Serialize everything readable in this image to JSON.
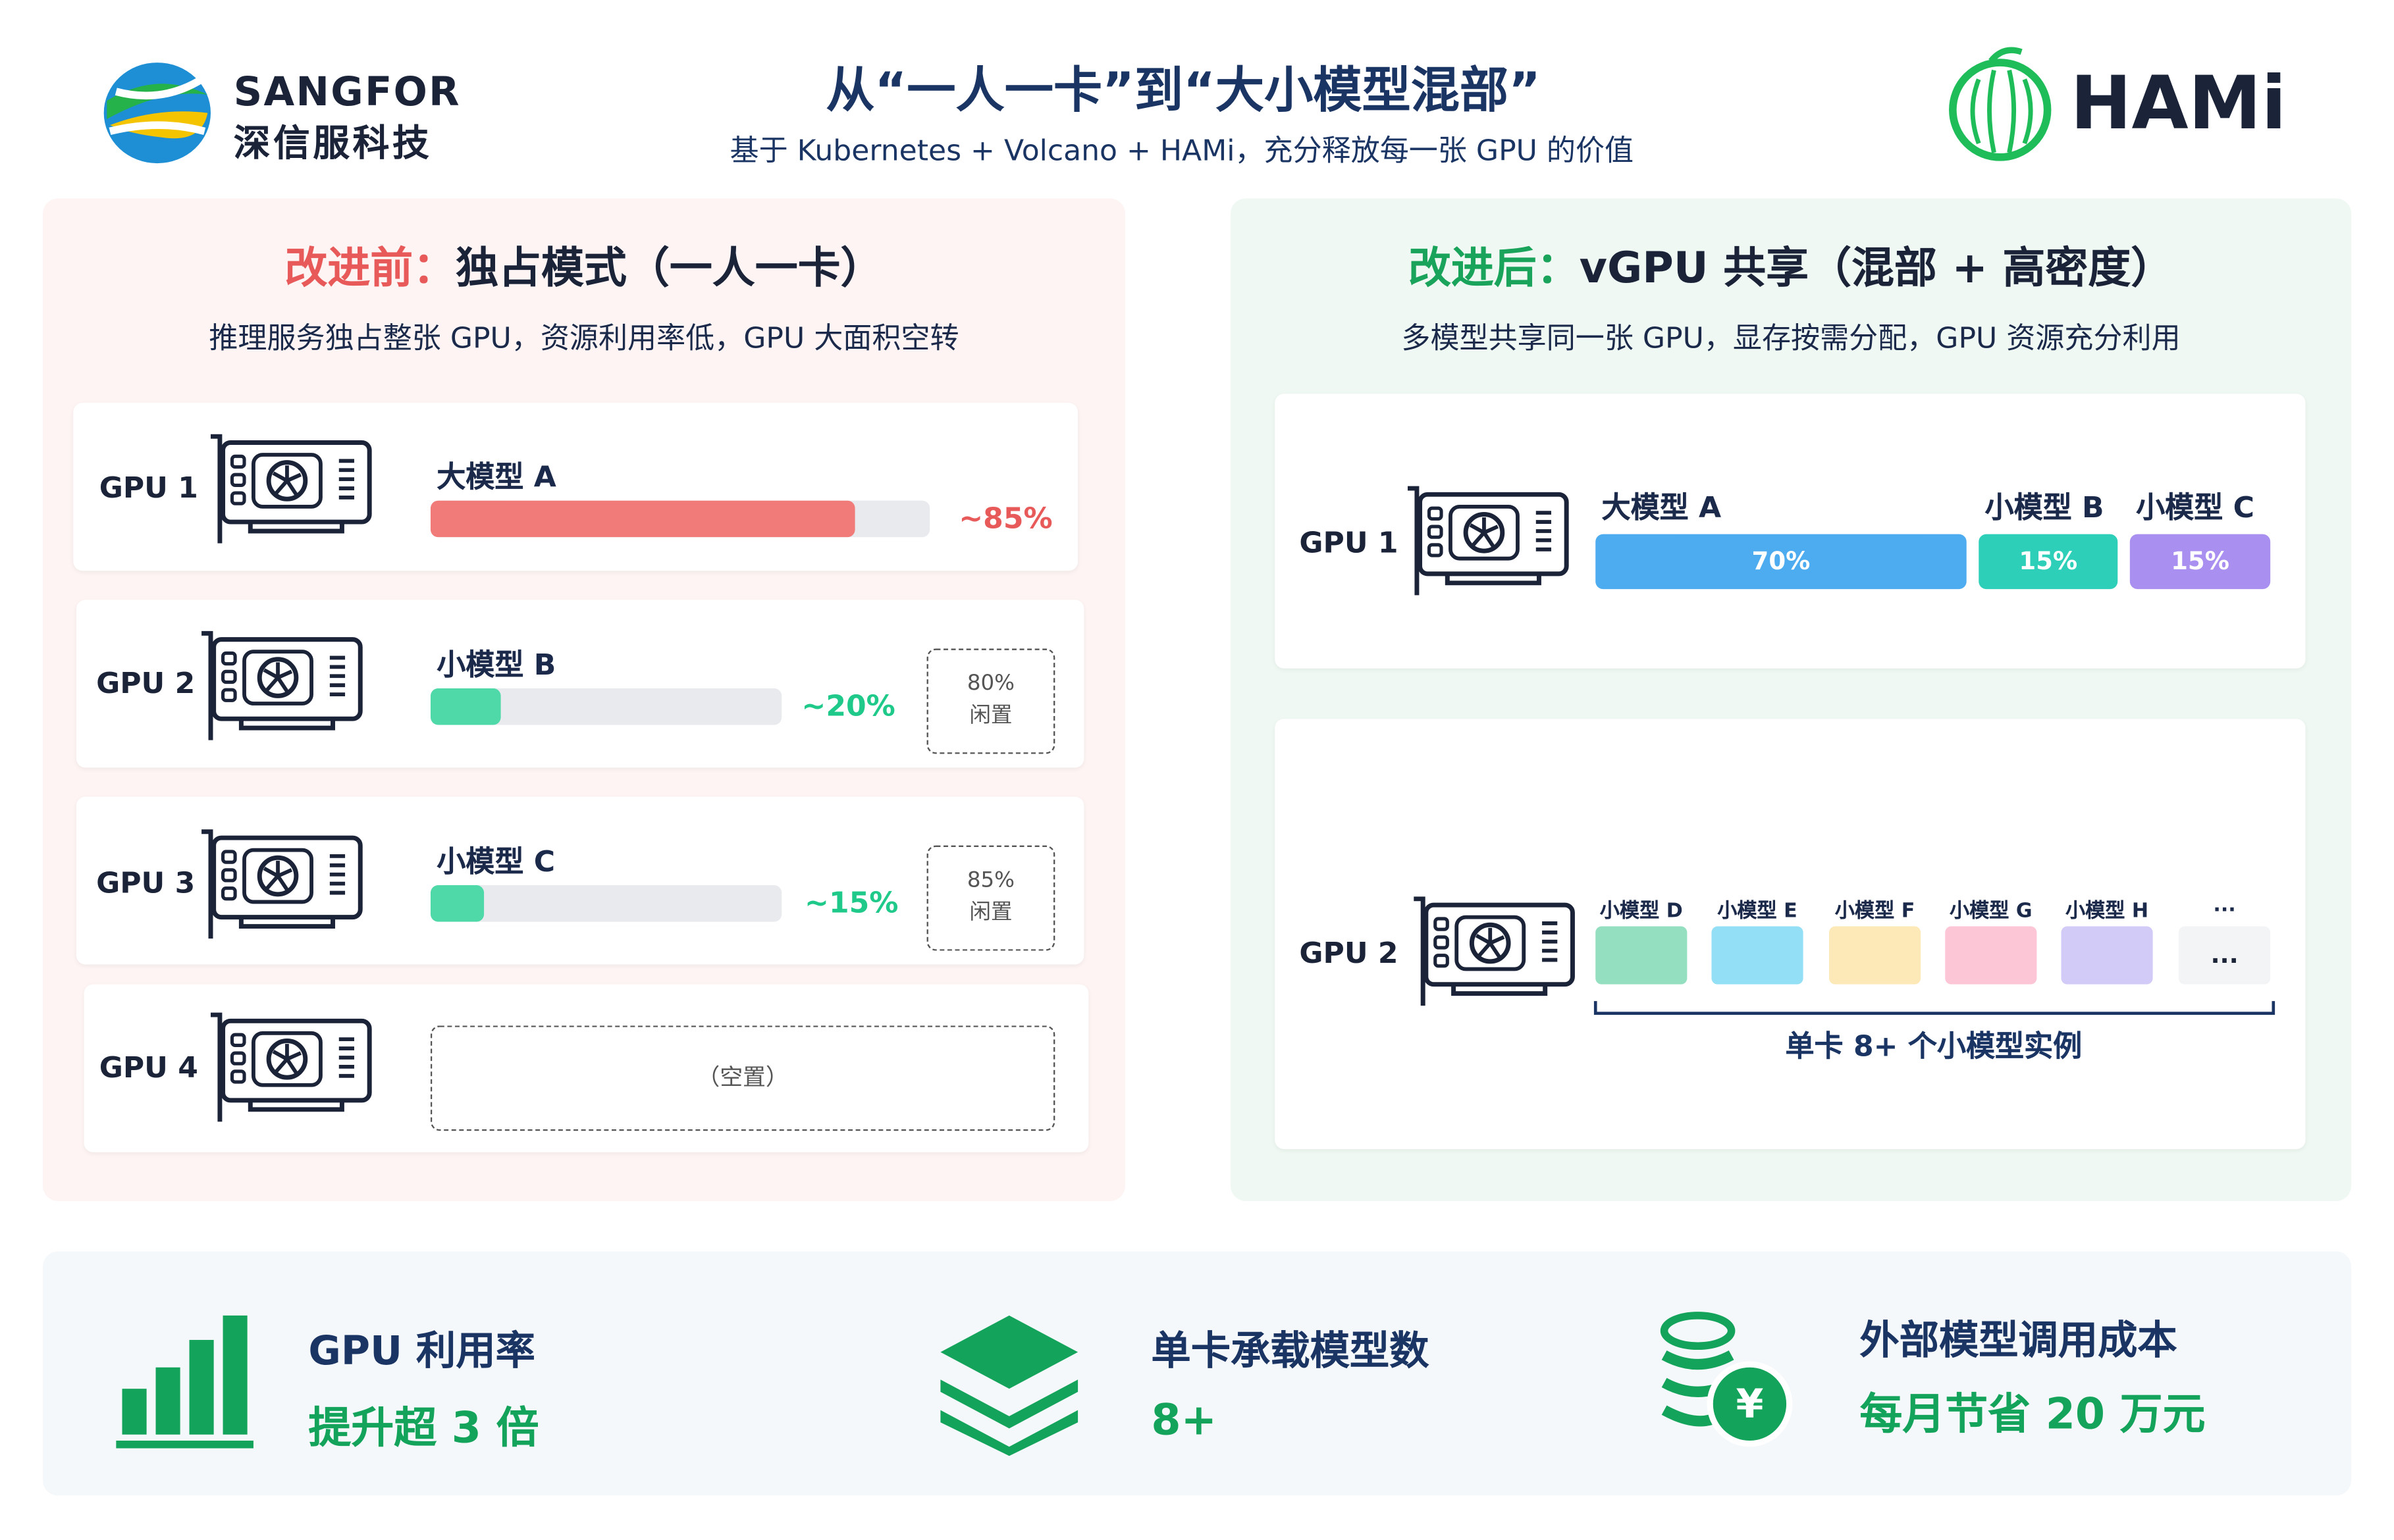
{
  "header": {
    "logo_left": {
      "name": "SANGFOR",
      "subname": "深信服科技"
    },
    "title": "从“一人一卡”到“大小模型混部”",
    "subtitle": "基于 Kubernetes + Volcano + HAMi，充分释放每一张 GPU 的价值",
    "logo_right": "HAMi"
  },
  "before": {
    "label": "改进前：",
    "title": "独占模式（一人一卡）",
    "description": "推理服务独占整张 GPU，资源利用率低，GPU 大面积空转",
    "gpus": [
      {
        "name": "GPU 1",
        "model": "大模型 A",
        "usage": 85,
        "usage_label": "~85%"
      },
      {
        "name": "GPU 2",
        "model": "小模型 B",
        "usage": 20,
        "usage_label": "~20%",
        "idle": [
          "80%",
          "闲置"
        ]
      },
      {
        "name": "GPU 3",
        "model": "小模型 C",
        "usage": 15,
        "usage_label": "~15%",
        "idle": [
          "85%",
          "闲置"
        ]
      },
      {
        "name": "GPU 4",
        "empty": "（空置）"
      }
    ]
  },
  "after": {
    "label": "改进后：",
    "title": "vGPU 共享（混部 + 高密度）",
    "description": "多模型共享同一张 GPU，显存按需分配，GPU 资源充分利用",
    "gpu1": {
      "name": "GPU 1",
      "slices": [
        {
          "model": "大模型 A",
          "share": "70%"
        },
        {
          "model": "小模型 B",
          "share": "15%"
        },
        {
          "model": "小模型 C",
          "share": "15%"
        }
      ]
    },
    "gpu2": {
      "name": "GPU 2",
      "instances": [
        {
          "label": "小模型 D"
        },
        {
          "label": "小模型 E"
        },
        {
          "label": "小模型 F"
        },
        {
          "label": "小模型 G"
        },
        {
          "label": "小模型 H"
        },
        {
          "label": "...",
          "box": "..."
        }
      ],
      "caption": "单卡 8+ 个小模型实例"
    }
  },
  "metrics": [
    {
      "title": "GPU 利用率",
      "value": "提升超 3 倍"
    },
    {
      "title": "单卡承载模型数",
      "value": "8+"
    },
    {
      "title": "外部模型调用成本",
      "value": "每月节省 20 万元"
    }
  ]
}
